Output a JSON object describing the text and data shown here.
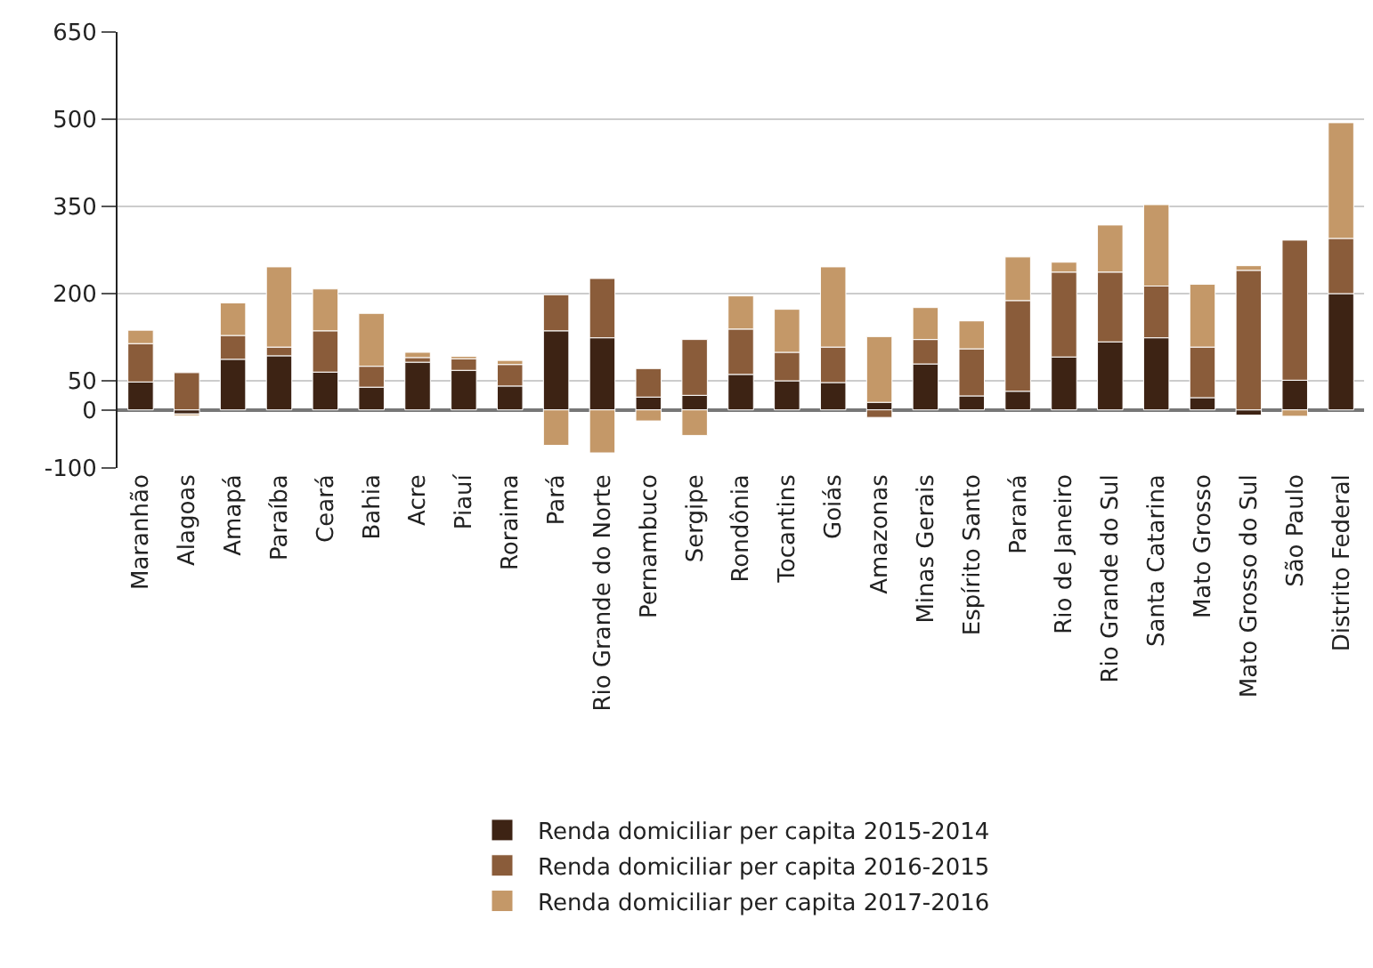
{
  "chart_data": {
    "type": "bar",
    "stacked": true,
    "categories": [
      "Maranhão",
      "Alagoas",
      "Amapá",
      "Paraíba",
      "Ceará",
      "Bahia",
      "Acre",
      "Piauí",
      "Roraima",
      "Pará",
      "Rio Grande do Norte",
      "Pernambuco",
      "Sergipe",
      "Rondônia",
      "Tocantins",
      "Goiás",
      "Amazonas",
      "Minas Gerais",
      "Espírito Santo",
      "Paraná",
      "Rio de Janeiro",
      "Rio Grande do Sul",
      "Santa Catarina",
      "Mato Grosso",
      "Mato Grosso do Sul",
      "São Paulo",
      "Distrito Federal"
    ],
    "series": [
      {
        "name": "Renda domiciliar per capita 2015-2014",
        "color": "#3d2314",
        "values": [
          48,
          -7,
          87,
          93,
          65,
          39,
          82,
          68,
          41,
          136,
          124,
          22,
          25,
          61,
          50,
          47,
          13,
          79,
          24,
          32,
          91,
          117,
          124,
          21,
          -9,
          51,
          200
        ]
      },
      {
        "name": "Renda domiciliar per capita 2016-2015",
        "color": "#8a5c3a",
        "values": [
          66,
          64,
          41,
          15,
          71,
          36,
          8,
          20,
          37,
          62,
          102,
          49,
          96,
          78,
          49,
          61,
          -13,
          42,
          81,
          156,
          146,
          120,
          89,
          87,
          240,
          241,
          95
        ]
      },
      {
        "name": "Renda domiciliar per capita 2017-2016",
        "color": "#c49868",
        "values": [
          23,
          -3,
          56,
          138,
          72,
          91,
          9,
          4,
          7,
          -61,
          -74,
          -19,
          -44,
          57,
          74,
          138,
          113,
          55,
          48,
          75,
          17,
          81,
          140,
          108,
          8,
          -11,
          199
        ]
      }
    ],
    "ylim": [
      -100,
      650
    ],
    "yticks": [
      -100,
      0,
      50,
      200,
      350,
      500,
      650
    ],
    "grid": true,
    "legend": "bottom"
  }
}
